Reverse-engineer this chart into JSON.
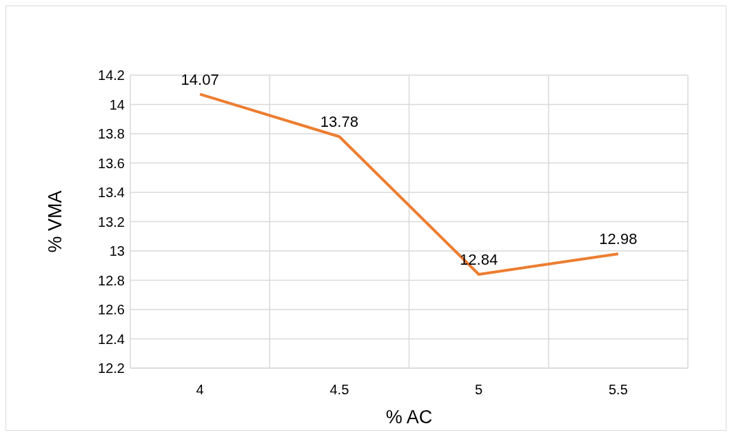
{
  "chart_data": {
    "type": "line",
    "xlabel": "% AC",
    "ylabel": "% VMA",
    "categories": [
      "4",
      "4.5",
      "5",
      "5.5"
    ],
    "series": [
      {
        "color": "#ed7d31",
        "values": [
          14.07,
          13.78,
          12.84,
          12.98
        ]
      }
    ],
    "ylim": [
      12.2,
      14.2
    ],
    "yticks": [
      12.2,
      12.4,
      12.6,
      12.8,
      13,
      13.2,
      13.4,
      13.6,
      13.8,
      14,
      14.2
    ],
    "grid": true,
    "data_labels": true,
    "marker": "none",
    "line_style": "solid"
  }
}
